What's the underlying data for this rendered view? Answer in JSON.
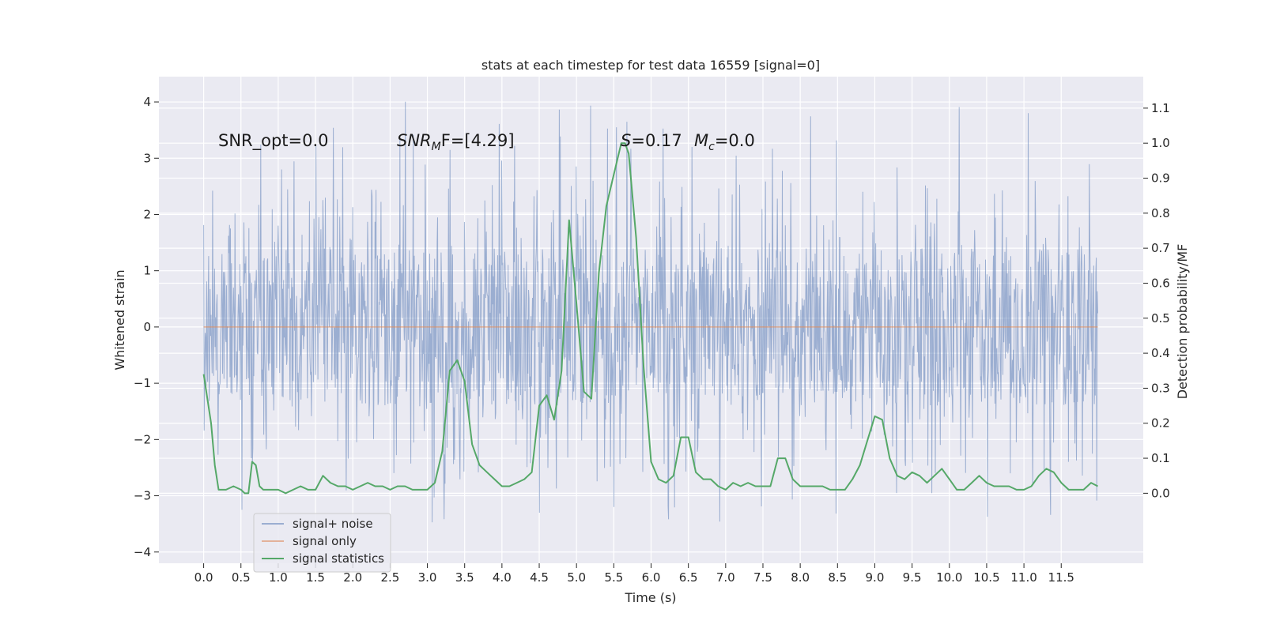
{
  "chart_data": {
    "type": "line",
    "title": "stats at each timestep for test data 16559 [signal=0]",
    "xlabel": "Time (s)",
    "ylabel_left": "Whitened strain",
    "ylabel_right": "Detection probability/MF",
    "xlim": [
      -0.6,
      12.6
    ],
    "ylim_left": [
      -4.2,
      4.45
    ],
    "ylim_right": [
      -0.2,
      1.19
    ],
    "grid": true,
    "x_ticks": [
      "0.0",
      "0.5",
      "1.0",
      "1.5",
      "2.0",
      "2.5",
      "3.0",
      "3.5",
      "4.0",
      "4.5",
      "5.0",
      "5.5",
      "6.0",
      "6.5",
      "7.0",
      "7.5",
      "8.0",
      "8.5",
      "9.0",
      "9.5",
      "10.0",
      "10.5",
      "11.0",
      "11.5"
    ],
    "y_left_ticks": [
      "4",
      "3",
      "2",
      "1",
      "0",
      "−1",
      "−2",
      "−3",
      "−4"
    ],
    "y_right_ticks": [
      "1.1",
      "1.0",
      "0.9",
      "0.8",
      "0.7",
      "0.6",
      "0.5",
      "0.4",
      "0.3",
      "0.2",
      "0.1",
      "0.0"
    ],
    "annotations": {
      "snr_opt": "SNR_opt=0.0",
      "snr_mf_main": "SNR",
      "snr_mf_sub": "M",
      "snr_mf_rest": "F=[4.29]",
      "s_main": "S",
      "s_rest": "=0.17",
      "mc_main": "M",
      "mc_sub": "c",
      "mc_rest": "=0.0"
    },
    "legend": {
      "position": "lower-left",
      "entries": [
        "signal+ noise",
        "signal only",
        "signal statistics"
      ]
    },
    "series": [
      {
        "name": "signal+ noise",
        "axis": "left",
        "color": "#4c72b0",
        "x_range": [
          0.0,
          11.99
        ],
        "envelope": {
          "typical": 1.4,
          "peak_max": 4.1,
          "trough_min": -3.5
        }
      },
      {
        "name": "signal only",
        "axis": "left",
        "color": "#dd8452",
        "x": [
          0.0,
          11.99
        ],
        "y": [
          0.0,
          0.0
        ]
      },
      {
        "name": "signal statistics",
        "axis": "right",
        "color": "#55a868",
        "x": [
          0.0,
          0.1,
          0.15,
          0.2,
          0.3,
          0.4,
          0.5,
          0.55,
          0.6,
          0.65,
          0.7,
          0.75,
          0.8,
          0.9,
          1.0,
          1.1,
          1.2,
          1.3,
          1.4,
          1.5,
          1.6,
          1.7,
          1.8,
          1.9,
          2.0,
          2.1,
          2.2,
          2.3,
          2.4,
          2.5,
          2.6,
          2.7,
          2.8,
          2.9,
          3.0,
          3.1,
          3.2,
          3.3,
          3.4,
          3.5,
          3.6,
          3.7,
          3.8,
          3.9,
          4.0,
          4.1,
          4.2,
          4.3,
          4.4,
          4.5,
          4.6,
          4.7,
          4.8,
          4.9,
          5.0,
          5.1,
          5.2,
          5.3,
          5.4,
          5.5,
          5.6,
          5.65,
          5.7,
          5.8,
          5.9,
          6.0,
          6.1,
          6.2,
          6.3,
          6.4,
          6.5,
          6.6,
          6.7,
          6.8,
          6.9,
          7.0,
          7.1,
          7.2,
          7.3,
          7.4,
          7.5,
          7.6,
          7.7,
          7.8,
          7.9,
          8.0,
          8.1,
          8.2,
          8.3,
          8.4,
          8.5,
          8.6,
          8.7,
          8.8,
          8.9,
          9.0,
          9.1,
          9.2,
          9.3,
          9.4,
          9.5,
          9.6,
          9.7,
          9.8,
          9.9,
          10.0,
          10.1,
          10.2,
          10.3,
          10.4,
          10.5,
          10.6,
          10.7,
          10.8,
          10.9,
          11.0,
          11.1,
          11.2,
          11.3,
          11.4,
          11.5,
          11.6,
          11.7,
          11.8,
          11.9,
          11.99
        ],
        "y": [
          0.34,
          0.2,
          0.08,
          0.01,
          0.01,
          0.02,
          0.01,
          0.0,
          0.0,
          0.09,
          0.08,
          0.02,
          0.01,
          0.01,
          0.01,
          0.0,
          0.01,
          0.02,
          0.01,
          0.01,
          0.05,
          0.03,
          0.02,
          0.02,
          0.01,
          0.02,
          0.03,
          0.02,
          0.02,
          0.01,
          0.02,
          0.02,
          0.01,
          0.01,
          0.01,
          0.03,
          0.12,
          0.35,
          0.38,
          0.32,
          0.14,
          0.08,
          0.06,
          0.04,
          0.02,
          0.02,
          0.03,
          0.04,
          0.06,
          0.25,
          0.28,
          0.21,
          0.35,
          0.78,
          0.54,
          0.29,
          0.27,
          0.63,
          0.82,
          0.91,
          1.0,
          1.0,
          0.97,
          0.73,
          0.36,
          0.09,
          0.04,
          0.03,
          0.05,
          0.16,
          0.16,
          0.06,
          0.04,
          0.04,
          0.02,
          0.01,
          0.03,
          0.02,
          0.03,
          0.02,
          0.02,
          0.02,
          0.1,
          0.1,
          0.04,
          0.02,
          0.02,
          0.02,
          0.02,
          0.01,
          0.01,
          0.01,
          0.04,
          0.08,
          0.15,
          0.22,
          0.21,
          0.1,
          0.05,
          0.04,
          0.06,
          0.05,
          0.03,
          0.05,
          0.07,
          0.04,
          0.01,
          0.01,
          0.03,
          0.05,
          0.03,
          0.02,
          0.02,
          0.02,
          0.01,
          0.01,
          0.02,
          0.05,
          0.07,
          0.06,
          0.03,
          0.01,
          0.01,
          0.01,
          0.03,
          0.02
        ]
      }
    ]
  }
}
